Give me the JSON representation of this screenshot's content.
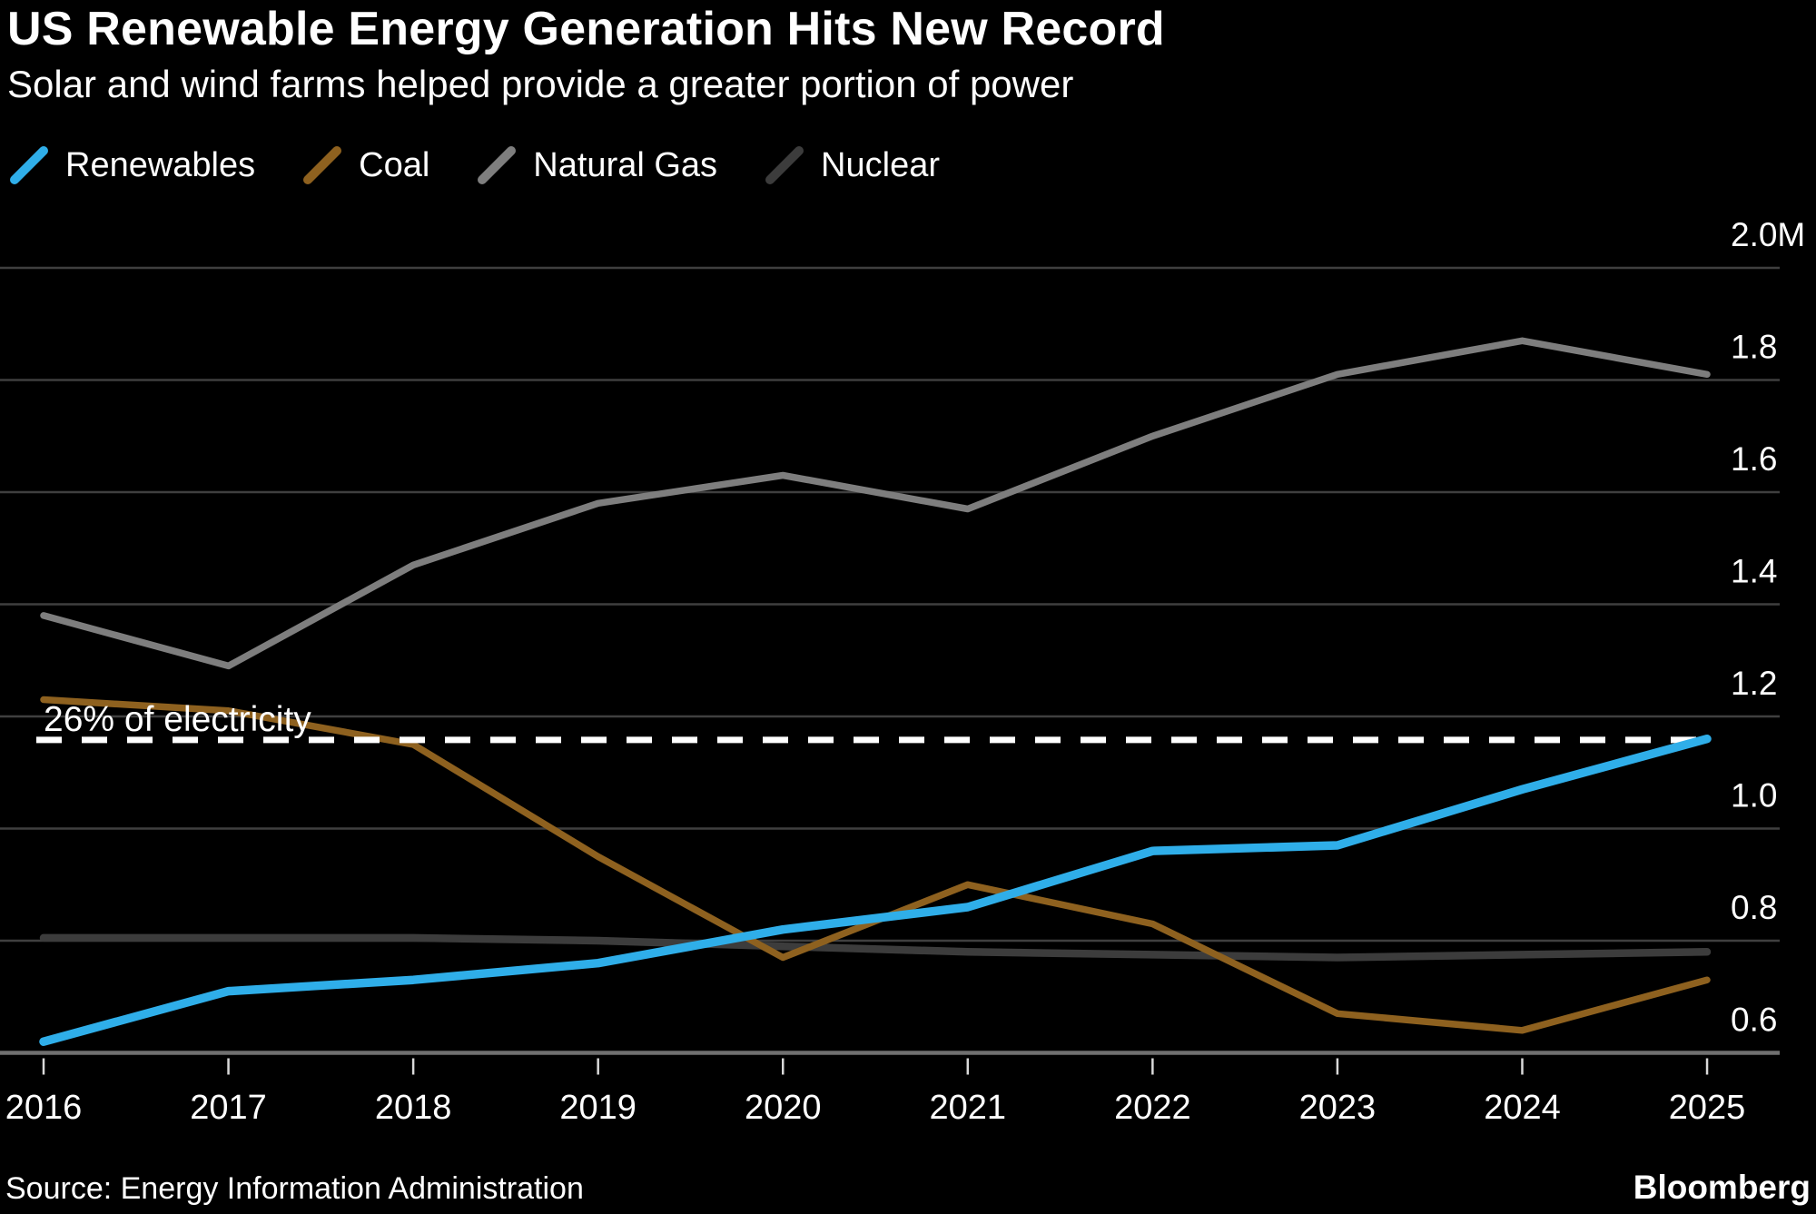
{
  "header": {
    "title": "US Renewable Energy Generation Hits New Record",
    "subtitle": "Solar and wind farms helped provide a greater portion of power"
  },
  "legend": [
    {
      "label": "Renewables",
      "color": "#2FAEE9"
    },
    {
      "label": "Coal",
      "color": "#8E611F"
    },
    {
      "label": "Natural Gas",
      "color": "#7E7E7E"
    },
    {
      "label": "Nuclear",
      "color": "#3C3C3C"
    }
  ],
  "annotation": {
    "text": "26% of electricity"
  },
  "footer": {
    "source": "Source: Energy Information Administration",
    "brand": "Bloomberg"
  },
  "colors": {
    "background": "#000000",
    "gridline": "#3F3F3F",
    "axis_line": "#707070",
    "tick_mark": "#D9D9D9",
    "label_text": "#FFFFFF",
    "reference_line": "#FFFFFF"
  },
  "chart_data": {
    "type": "line",
    "title": "US Renewable Energy Generation Hits New Record",
    "subtitle": "Solar and wind farms helped provide a greater portion of power",
    "xlabel": "",
    "ylabel": "",
    "x": [
      2016,
      2017,
      2018,
      2019,
      2020,
      2021,
      2022,
      2023,
      2024,
      2025
    ],
    "x_tick_labels": [
      "2016",
      "2017",
      "2018",
      "2019",
      "2020",
      "2021",
      "2022",
      "2023",
      "2024",
      "2025"
    ],
    "ylim": [
      0.6,
      2.0
    ],
    "grid": true,
    "legend_position": "top-left",
    "y_ticks": [
      {
        "label": "2.0M",
        "value": 2.0
      },
      {
        "label": "1.8",
        "value": 1.8
      },
      {
        "label": "1.6",
        "value": 1.6
      },
      {
        "label": "1.4",
        "value": 1.4
      },
      {
        "label": "1.2",
        "value": 1.2
      },
      {
        "label": "1.0",
        "value": 1.0
      },
      {
        "label": "0.8",
        "value": 0.8
      },
      {
        "label": "0.6",
        "value": 0.6
      }
    ],
    "series": [
      {
        "name": "Renewables",
        "color": "#2FAEE9",
        "values": [
          0.62,
          0.71,
          0.73,
          0.76,
          0.82,
          0.86,
          0.96,
          0.97,
          1.07,
          1.16
        ]
      },
      {
        "name": "Coal",
        "color": "#8E611F",
        "values": [
          1.23,
          1.21,
          1.15,
          0.95,
          0.77,
          0.9,
          0.83,
          0.67,
          0.64,
          0.73
        ]
      },
      {
        "name": "Natural Gas",
        "color": "#7E7E7E",
        "values": [
          1.38,
          1.29,
          1.47,
          1.58,
          1.63,
          1.57,
          1.7,
          1.81,
          1.87,
          1.81
        ]
      },
      {
        "name": "Nuclear",
        "color": "#3C3C3C",
        "values": [
          0.805,
          0.805,
          0.805,
          0.8,
          0.79,
          0.78,
          0.775,
          0.77,
          0.775,
          0.78
        ]
      }
    ],
    "reference_line": {
      "value": 1.158,
      "label": "26% of electricity",
      "style": "dashed-white"
    }
  }
}
